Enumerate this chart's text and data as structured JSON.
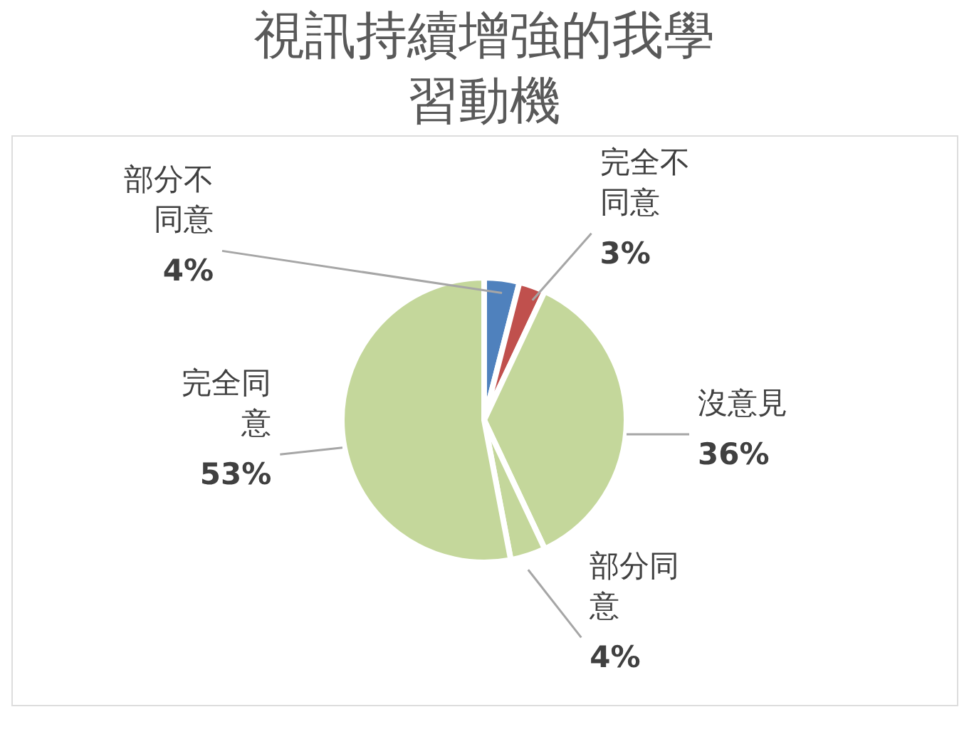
{
  "chart_data": {
    "type": "pie",
    "title": "視訊持續增強的我學習動機",
    "categories": [
      "部分不同意",
      "完全不同意",
      "沒意見",
      "部分同意",
      "完全同意"
    ],
    "values": [
      4,
      3,
      36,
      4,
      53
    ],
    "colors": [
      "#4f81bd",
      "#c0504d",
      "#c4d79b",
      "#c4d79b",
      "#c4d79b"
    ],
    "value_labels": [
      "4%",
      "3%",
      "36%",
      "4%",
      "53%"
    ],
    "legend": false
  }
}
